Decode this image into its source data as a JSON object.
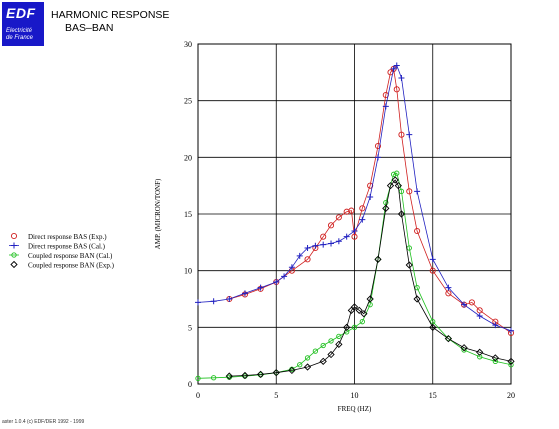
{
  "header": {
    "logo_text": "EDF",
    "logo_line1": "Electricité",
    "logo_line2": "de France",
    "title_line1": "HARMONIC RESPONSE",
    "title_line2": "BAS–BAN"
  },
  "footer": {
    "copyright": "aster 1.0.4 (c) EDF/DER 1992 - 1999"
  },
  "colors": {
    "logo_bg": "#1818c8",
    "grid": "#000000"
  },
  "chart_data": {
    "type": "line",
    "xlabel": "FREQ (HZ)",
    "ylabel": "AMP. (MICRON/TONF)",
    "xlim": [
      0,
      20
    ],
    "ylim": [
      0,
      30
    ],
    "xticks": [
      0,
      5,
      10,
      15,
      20
    ],
    "yticks": [
      0,
      5,
      10,
      15,
      20,
      25,
      30
    ],
    "grid": true,
    "legend_position": "left",
    "series": [
      {
        "name": "Direct response BAS (Exp.)",
        "color": "#d02020",
        "marker": "circle",
        "x": [
          2.0,
          3.0,
          4.0,
          5.0,
          6.0,
          7.0,
          7.5,
          8.0,
          8.5,
          9.0,
          9.5,
          9.8,
          10.0,
          10.5,
          11.0,
          11.5,
          12.0,
          12.3,
          12.5,
          12.7,
          13.0,
          13.5,
          14.0,
          15.0,
          16.0,
          17.0,
          17.5,
          18.0,
          19.0,
          20.0
        ],
        "y": [
          7.5,
          7.9,
          8.4,
          9.0,
          10.0,
          11.0,
          12.0,
          13.0,
          14.0,
          14.7,
          15.2,
          15.3,
          13.0,
          15.5,
          17.5,
          21.0,
          25.5,
          27.5,
          27.8,
          26.0,
          22.0,
          17.0,
          13.5,
          10.0,
          8.0,
          7.0,
          7.2,
          6.5,
          5.5,
          4.5
        ]
      },
      {
        "name": "Direct response BAS (Cal.)",
        "color": "#2020c0",
        "marker": "plus",
        "x": [
          0,
          1,
          2,
          3,
          4,
          5,
          5.5,
          6,
          6.5,
          7,
          7.5,
          8,
          8.5,
          9,
          9.5,
          10,
          10.5,
          11,
          11.5,
          12,
          12.5,
          12.7,
          13,
          13.5,
          14,
          15,
          16,
          17,
          18,
          19,
          20
        ],
        "y": [
          7.2,
          7.3,
          7.5,
          8.0,
          8.5,
          9.0,
          9.5,
          10.3,
          11.3,
          12.0,
          12.2,
          12.3,
          12.4,
          12.6,
          13.0,
          13.5,
          14.5,
          16.5,
          20.0,
          24.5,
          27.8,
          28.1,
          27.0,
          22.0,
          17.0,
          11.0,
          8.5,
          7.0,
          6.0,
          5.2,
          4.7
        ]
      },
      {
        "name": "Coupled response BAN (Cal.)",
        "color": "#20c020",
        "marker": "circle-small",
        "x": [
          0,
          1,
          2,
          3,
          4,
          5,
          6,
          6.5,
          7,
          7.5,
          8,
          8.5,
          9,
          9.5,
          10,
          10.5,
          11,
          11.5,
          12,
          12.5,
          12.7,
          13,
          13.5,
          14,
          15,
          16,
          17,
          18,
          19,
          20
        ],
        "y": [
          0.5,
          0.55,
          0.6,
          0.7,
          0.8,
          1.0,
          1.3,
          1.7,
          2.3,
          2.9,
          3.4,
          3.8,
          4.2,
          4.6,
          5.0,
          5.5,
          7.0,
          11.0,
          16.0,
          18.5,
          18.6,
          17.0,
          12.0,
          8.5,
          5.5,
          4.0,
          3.0,
          2.4,
          2.0,
          1.7
        ]
      },
      {
        "name": "Coupled response BAN (Exp.)",
        "color": "#000000",
        "marker": "diamond",
        "x": [
          2,
          3,
          4,
          5,
          6,
          7,
          8,
          8.5,
          9,
          9.5,
          9.8,
          10,
          10.3,
          10.6,
          11,
          11.5,
          12,
          12.3,
          12.6,
          12.8,
          13,
          13.5,
          14,
          15,
          16,
          17,
          18,
          19,
          20
        ],
        "y": [
          0.7,
          0.75,
          0.85,
          1.0,
          1.2,
          1.5,
          2.0,
          2.6,
          3.5,
          5.0,
          6.5,
          6.8,
          6.5,
          6.2,
          7.5,
          11.0,
          15.5,
          17.5,
          18.0,
          17.5,
          15.0,
          10.5,
          7.5,
          5.0,
          4.0,
          3.2,
          2.8,
          2.3,
          2.0
        ]
      }
    ]
  }
}
